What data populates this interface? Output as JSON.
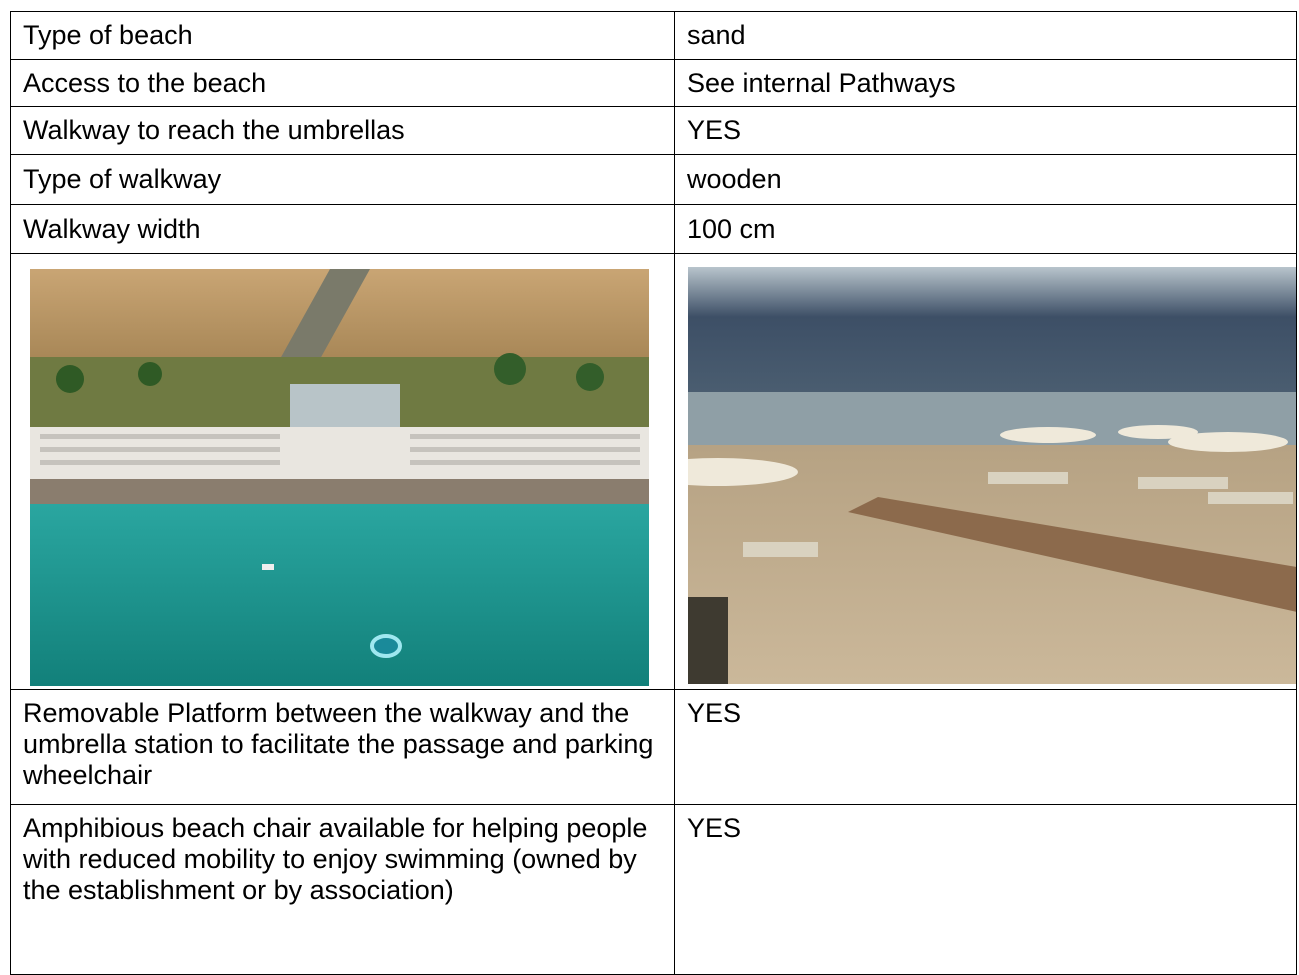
{
  "table": {
    "rows": [
      {
        "label": "Type of beach",
        "value": "sand"
      },
      {
        "label": "Access to the beach",
        "value": "See internal Pathways"
      },
      {
        "label": "Walkway to reach the umbrellas",
        "value": "YES"
      },
      {
        "label": "Type of walkway",
        "value": "wooden"
      },
      {
        "label": "Walkway width",
        "value": "100 cm"
      },
      {
        "label": "Removable Platform between the walkway and the umbrella station to facilitate the passage and parking wheelchair",
        "value": "YES"
      },
      {
        "label": "Amphibious beach chair available for helping people with reduced mobility to enjoy swimming (owned by the establishment or by association)",
        "value": "YES"
      }
    ]
  }
}
